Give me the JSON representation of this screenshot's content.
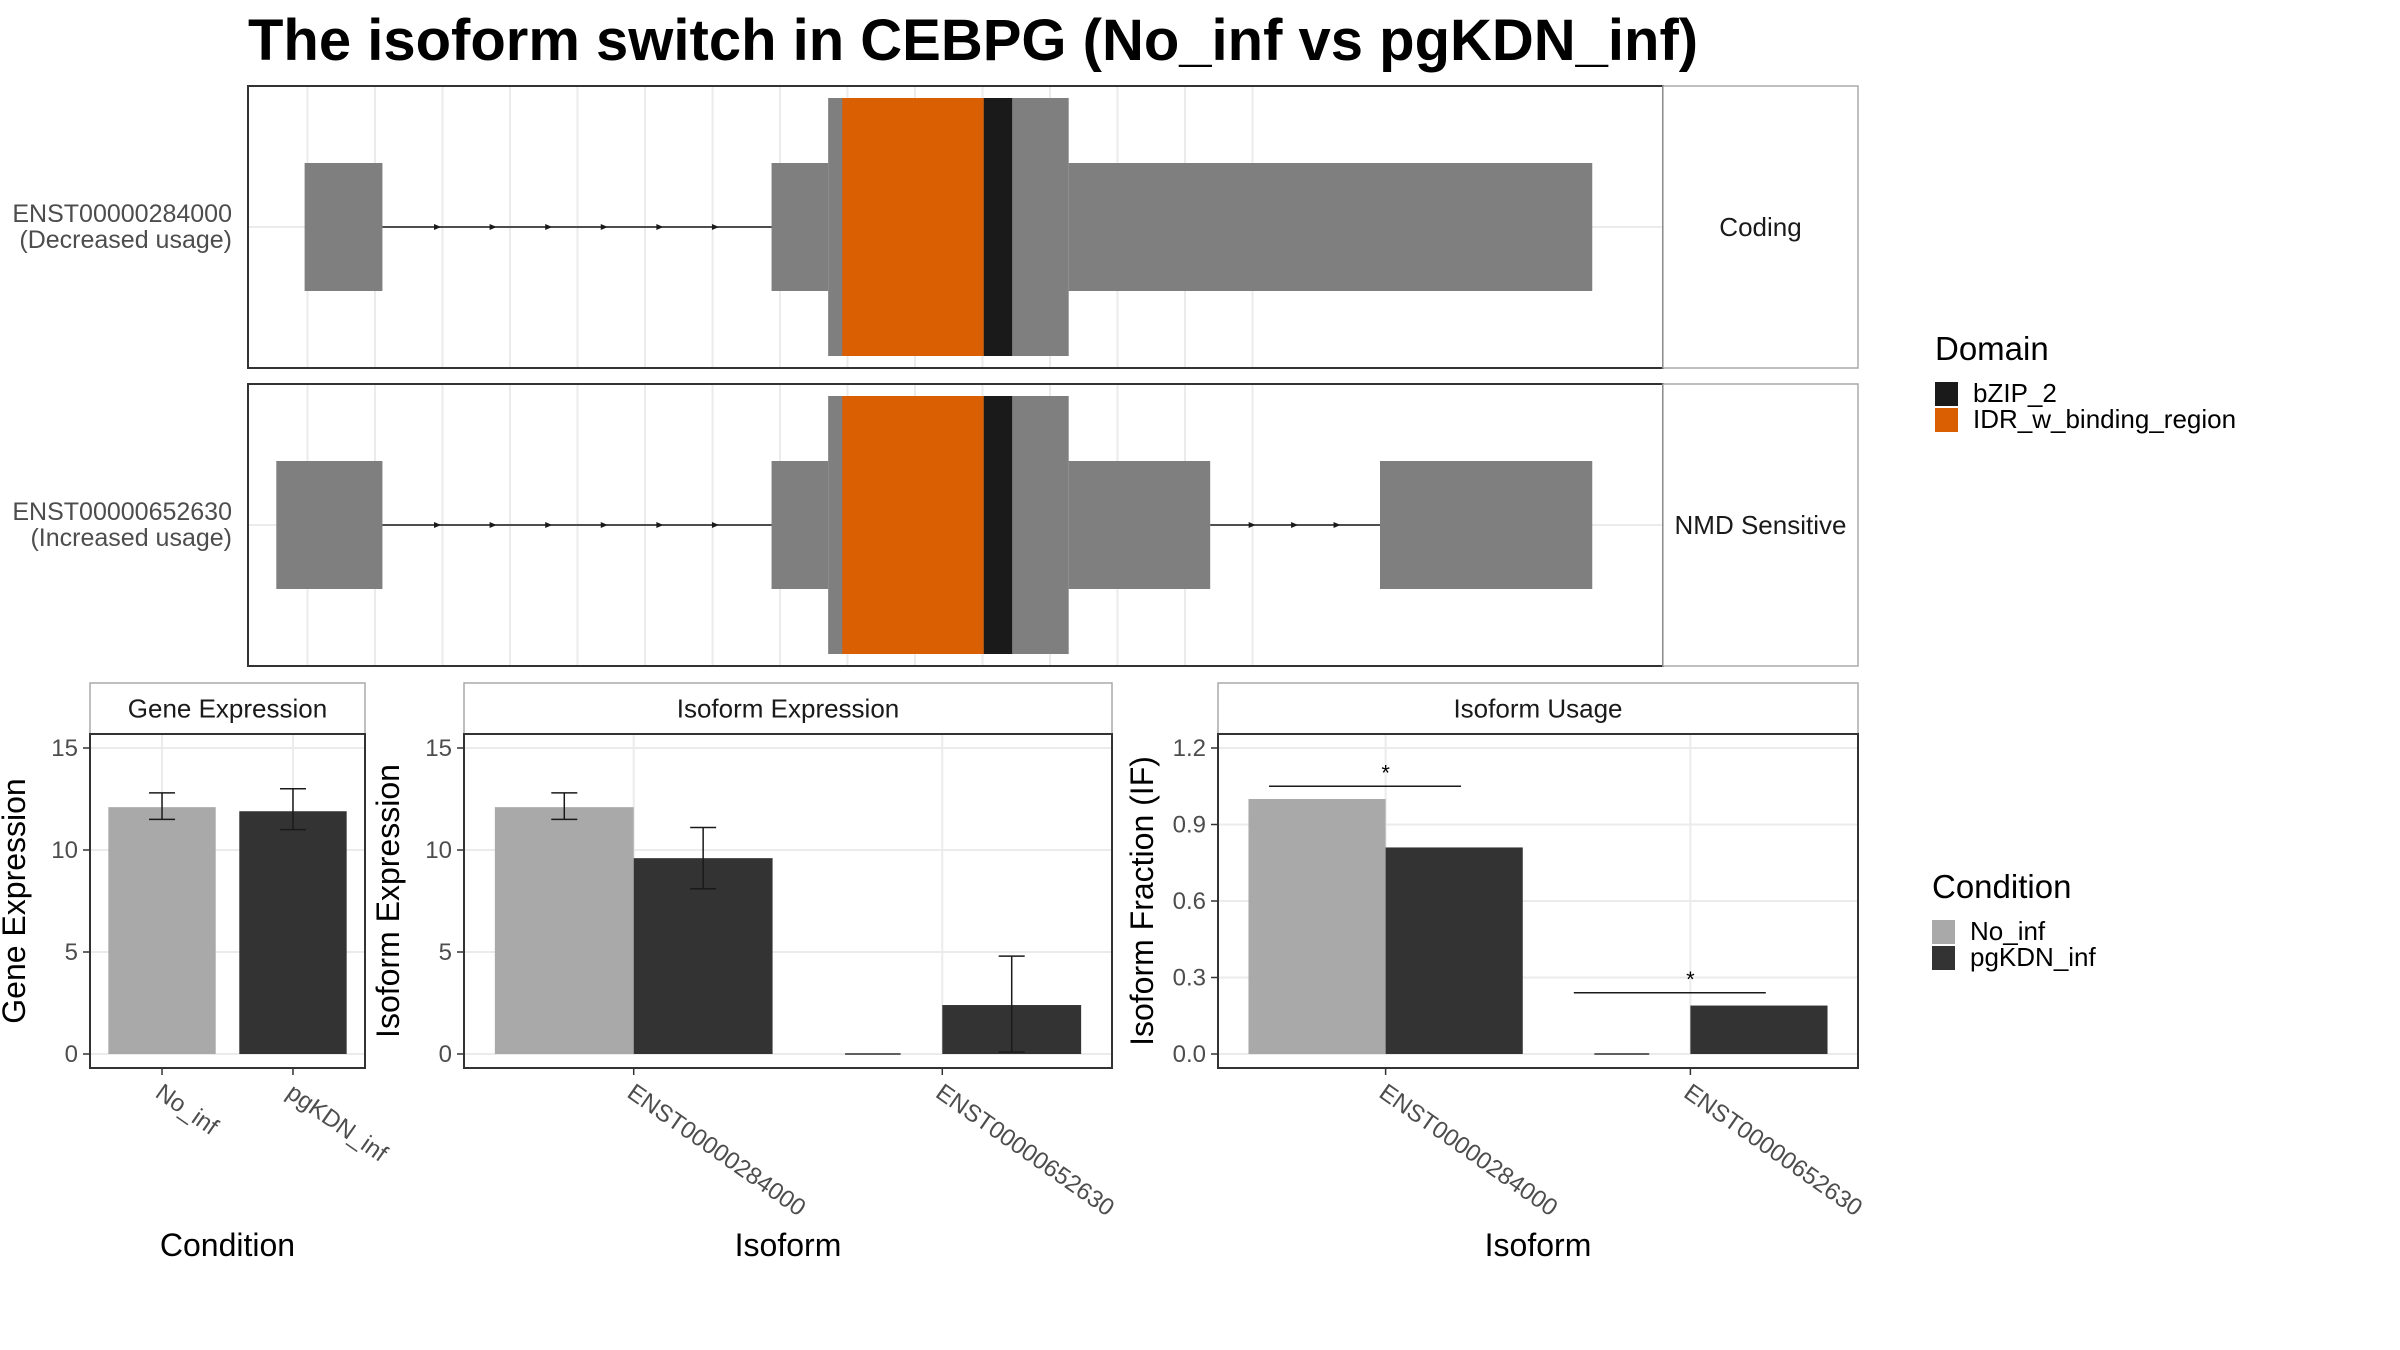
{
  "title": "The isoform switch in CEBPG (No_inf vs pgKDN_inf)",
  "colors": {
    "exon": "#7f7f7f",
    "idr": "#d95f02",
    "bzip": "#1a1a1a",
    "no_inf": "#a9a9a9",
    "pgkdn_inf": "#333333"
  },
  "legends": {
    "domain": {
      "title": "Domain",
      "items": [
        "bZIP_2",
        "IDR_w_binding_region"
      ]
    },
    "condition": {
      "title": "Condition",
      "items": [
        "No_inf",
        "pgKDN_inf"
      ]
    }
  },
  "chart_data": [
    {
      "type": "gene-structure",
      "title": "The isoform switch in CEBPG (No_inf vs pgKDN_inf)",
      "x_range": [
        0,
        100
      ],
      "transcripts": [
        {
          "id": "ENST00000284000",
          "label": "(Decreased usage)",
          "strip": "Coding",
          "exons": [
            [
              4,
              9.5,
              "utr"
            ],
            [
              37,
              41,
              "utr"
            ],
            [
              41,
              58,
              "cds"
            ],
            [
              58,
              95,
              "utr"
            ]
          ],
          "domains": [
            {
              "name": "IDR_w_binding_region",
              "start": 42,
              "end": 52
            },
            {
              "name": "bZIP_2",
              "start": 52,
              "end": 54
            }
          ]
        },
        {
          "id": "ENST00000652630",
          "label": "(Increased usage)",
          "strip": "NMD Sensitive",
          "exons": [
            [
              2,
              9.5,
              "utr"
            ],
            [
              37,
              41,
              "utr"
            ],
            [
              41,
              58,
              "cds"
            ],
            [
              58,
              68,
              "utr"
            ],
            [
              80,
              95,
              "utr"
            ]
          ],
          "domains": [
            {
              "name": "IDR_w_binding_region",
              "start": 42,
              "end": 52
            },
            {
              "name": "bZIP_2",
              "start": 52,
              "end": 54
            }
          ]
        }
      ]
    },
    {
      "type": "bar",
      "title": "Gene Expression",
      "xlabel": "Condition",
      "ylabel": "Gene Expression",
      "ylim": [
        0,
        15
      ],
      "yticks": [
        0,
        5,
        10,
        15
      ],
      "categories": [
        "No_inf",
        "pgKDN_inf"
      ],
      "values": [
        12.1,
        11.9
      ],
      "errors": [
        [
          11.5,
          12.8
        ],
        [
          11.0,
          13.0
        ]
      ]
    },
    {
      "type": "bar",
      "title": "Isoform Expression",
      "xlabel": "Isoform",
      "ylabel": "Isoform Expression",
      "ylim": [
        0,
        15
      ],
      "yticks": [
        0,
        5,
        10,
        15
      ],
      "categories": [
        "ENST00000284000",
        "ENST00000652630"
      ],
      "series": [
        {
          "name": "No_inf",
          "values": [
            12.1,
            0.0
          ],
          "errors": [
            [
              11.5,
              12.8
            ],
            [
              0,
              0
            ]
          ]
        },
        {
          "name": "pgKDN_inf",
          "values": [
            9.6,
            2.4
          ],
          "errors": [
            [
              8.1,
              11.1
            ],
            [
              0.1,
              4.8
            ]
          ]
        }
      ]
    },
    {
      "type": "bar",
      "title": "Isoform Usage",
      "xlabel": "Isoform",
      "ylabel": "Isoform Fraction (IF)",
      "ylim": [
        0,
        1.2
      ],
      "yticks": [
        "0.0",
        "0.3",
        "0.6",
        "0.9",
        "1.2"
      ],
      "categories": [
        "ENST00000284000",
        "ENST00000652630"
      ],
      "series": [
        {
          "name": "No_inf",
          "values": [
            1.0,
            0.0
          ]
        },
        {
          "name": "pgKDN_inf",
          "values": [
            0.81,
            0.19
          ]
        }
      ],
      "significance": [
        {
          "category": "ENST00000284000",
          "y": 1.05,
          "label": "*"
        },
        {
          "category": "ENST00000652630",
          "y": 0.24,
          "label": "*"
        }
      ]
    }
  ]
}
